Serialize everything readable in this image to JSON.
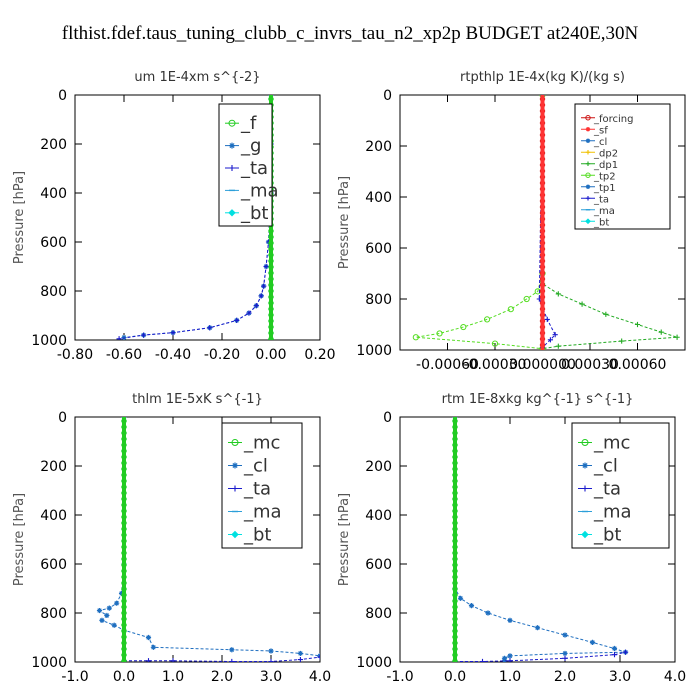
{
  "title": "flthist.fdef.taus_tuning_clubb_c_invrs_tau_n2_xp2p  BUDGET at240E,30N",
  "colors": {
    "_f": "#22cc22",
    "_g": "#1f6fc0",
    "_ta": "#1a1acc",
    "_ma": "#2c9fd9",
    "_bt": "#00e0e0",
    "_mc": "#22cc22",
    "_cl": "#1f6fc0",
    "_forcing": "#cc1111",
    "_sf": "#ff3333",
    "_dp2": "#f0c000",
    "_dp1": "#22aa22",
    "_tp2": "#55dd22",
    "_tp1": "#1f6fc0"
  },
  "chart_data": [
    {
      "type": "line",
      "title": "um   1E-4xm s^{-2}",
      "ylabel": "Pressure [hPa]",
      "xlim": [
        -0.8,
        0.2
      ],
      "ylim": [
        1000,
        0
      ],
      "xticks": [
        -0.8,
        -0.6,
        -0.4,
        -0.2,
        0.0,
        0.2
      ],
      "xtick_labels": [
        "-0.80",
        "-0.60",
        "-0.40",
        "-0.20",
        "0.00",
        "0.20"
      ],
      "yticks": [
        0,
        200,
        400,
        600,
        800,
        1000
      ],
      "legend": {
        "position": "top-right",
        "entries": [
          "_f",
          "_g",
          "_ta",
          "_ma",
          "_bt"
        ]
      },
      "series": [
        {
          "name": "_g",
          "x": [
            0,
            0,
            0,
            -0.01,
            -0.02,
            -0.03,
            -0.04,
            -0.06,
            -0.09,
            -0.14,
            -0.25,
            -0.4,
            -0.52,
            -0.6
          ],
          "y": [
            0,
            200,
            400,
            600,
            700,
            780,
            820,
            860,
            890,
            920,
            950,
            970,
            980,
            990
          ]
        },
        {
          "name": "_ta",
          "x": [
            0,
            0,
            0,
            -0.01,
            -0.02,
            -0.03,
            -0.04,
            -0.06,
            -0.09,
            -0.14,
            -0.25,
            -0.4,
            -0.52,
            -0.62
          ],
          "y": [
            0,
            200,
            400,
            600,
            700,
            780,
            820,
            860,
            890,
            920,
            950,
            970,
            980,
            995
          ]
        },
        {
          "name": "_ma",
          "x": [
            0,
            0,
            0,
            0
          ],
          "y": [
            0,
            400,
            800,
            1000
          ]
        },
        {
          "name": "_bt",
          "x": [
            0,
            0,
            0,
            0
          ],
          "y": [
            0,
            400,
            800,
            1000
          ]
        },
        {
          "name": "_f",
          "x": [
            0,
            0,
            0,
            0
          ],
          "y": [
            0,
            400,
            800,
            1000
          ]
        }
      ]
    },
    {
      "type": "line",
      "title": "rtpthlp   1E-4x(kg K)/(kg s)",
      "ylabel": "Pressure [hPa]",
      "xlim": [
        -0.0009,
        0.0009
      ],
      "ylim": [
        1000,
        0
      ],
      "xticks": [
        -0.0006,
        -0.0003,
        0.0,
        0.0003,
        0.0006
      ],
      "xtick_labels": [
        "-0.00060",
        "-0.00030",
        "0.000000",
        "0.00030",
        "0.00060"
      ],
      "yticks": [
        0,
        200,
        400,
        600,
        800,
        1000
      ],
      "legend": {
        "position": "top-right",
        "entries": [
          "_forcing",
          "_sf",
          "_cl",
          "_dp2",
          "_dp1",
          "_tp2",
          "_tp1",
          "_ta",
          "_ma",
          "_bt"
        ]
      },
      "series": [
        {
          "name": "_tp2",
          "x": [
            0,
            0,
            -3e-05,
            -0.0001,
            -0.0002,
            -0.00035,
            -0.0005,
            -0.00065,
            -0.0008,
            -0.0003,
            0
          ],
          "y": [
            0,
            700,
            770,
            800,
            840,
            880,
            910,
            935,
            950,
            975,
            995
          ]
        },
        {
          "name": "_dp1",
          "x": [
            0,
            0,
            0.0001,
            0.00025,
            0.0004,
            0.0006,
            0.00075,
            0.00085,
            0.0005,
            0.0001,
            0
          ],
          "y": [
            0,
            740,
            780,
            820,
            860,
            900,
            930,
            950,
            965,
            985,
            995
          ]
        },
        {
          "name": "_ta",
          "x": [
            0,
            -2e-05,
            3e-05,
            8e-05,
            5e-05,
            0
          ],
          "y": [
            0,
            800,
            880,
            940,
            960,
            990
          ]
        },
        {
          "name": "_forcing",
          "x": [
            0,
            0,
            0
          ],
          "y": [
            0,
            500,
            1000
          ]
        },
        {
          "name": "_sf",
          "x": [
            0,
            0,
            0
          ],
          "y": [
            0,
            500,
            1000
          ]
        }
      ]
    },
    {
      "type": "line",
      "title": "thlm   1E-5xK s^{-1}",
      "ylabel": "Pressure [hPa]",
      "xlim": [
        -1.0,
        4.0
      ],
      "ylim": [
        1000,
        0
      ],
      "xticks": [
        -1.0,
        0.0,
        1.0,
        2.0,
        3.0,
        4.0
      ],
      "xtick_labels": [
        "-1.0",
        "0.0",
        "1.0",
        "2.0",
        "3.0",
        "4.0"
      ],
      "yticks": [
        0,
        200,
        400,
        600,
        800,
        1000
      ],
      "legend": {
        "position": "top-right",
        "entries": [
          "_mc",
          "_cl",
          "_ta",
          "_ma",
          "_bt"
        ]
      },
      "series": [
        {
          "name": "_cl",
          "x": [
            0,
            0,
            -0.05,
            -0.15,
            -0.3,
            -0.5,
            -0.35,
            -0.45,
            -0.2,
            0.0,
            0.5,
            0.6,
            2.2,
            3.0,
            3.6,
            4.0
          ],
          "y": [
            0,
            600,
            720,
            760,
            780,
            790,
            810,
            830,
            850,
            870,
            900,
            940,
            950,
            955,
            965,
            975
          ]
        },
        {
          "name": "_ta",
          "x": [
            0,
            0.5,
            1.0,
            2.2,
            3.0,
            3.6,
            4.0
          ],
          "y": [
            995,
            995,
            995,
            998,
            998,
            990,
            980
          ]
        },
        {
          "name": "_ma",
          "x": [
            0,
            0,
            0
          ],
          "y": [
            0,
            500,
            1000
          ]
        },
        {
          "name": "_bt",
          "x": [
            0,
            0,
            0
          ],
          "y": [
            0,
            500,
            1000
          ]
        },
        {
          "name": "_mc",
          "x": [
            0,
            0,
            0
          ],
          "y": [
            0,
            500,
            1000
          ]
        }
      ]
    },
    {
      "type": "line",
      "title": "rtm   1E-8xkg kg^{-1} s^{-1}",
      "ylabel": "Pressure [hPa]",
      "xlim": [
        -1.0,
        4.0
      ],
      "ylim": [
        1000,
        0
      ],
      "xticks": [
        -1.0,
        0.0,
        1.0,
        2.0,
        3.0,
        4.0
      ],
      "xtick_labels": [
        "-1.0",
        "0.0",
        "1.0",
        "2.0",
        "3.0",
        "4.0"
      ],
      "yticks": [
        0,
        200,
        400,
        600,
        800,
        1000
      ],
      "legend": {
        "position": "top-right",
        "entries": [
          "_mc",
          "_cl",
          "_ta",
          "_ma",
          "_bt"
        ]
      },
      "series": [
        {
          "name": "_cl",
          "x": [
            0,
            0,
            0.1,
            0.3,
            0.6,
            1.0,
            1.5,
            2.0,
            2.5,
            2.9,
            3.1,
            2.0,
            1.0,
            0.9,
            0.9
          ],
          "y": [
            0,
            700,
            740,
            770,
            800,
            830,
            860,
            890,
            920,
            945,
            960,
            965,
            975,
            985,
            995
          ]
        },
        {
          "name": "_ta",
          "x": [
            0,
            0.5,
            1.0,
            2.0,
            2.9,
            3.1
          ],
          "y": [
            998,
            998,
            995,
            985,
            970,
            960
          ]
        },
        {
          "name": "_ma",
          "x": [
            0,
            0,
            0
          ],
          "y": [
            0,
            500,
            1000
          ]
        },
        {
          "name": "_bt",
          "x": [
            0,
            0,
            0
          ],
          "y": [
            0,
            500,
            1000
          ]
        },
        {
          "name": "_mc",
          "x": [
            0,
            0,
            0
          ],
          "y": [
            0,
            500,
            1000
          ]
        }
      ]
    }
  ]
}
